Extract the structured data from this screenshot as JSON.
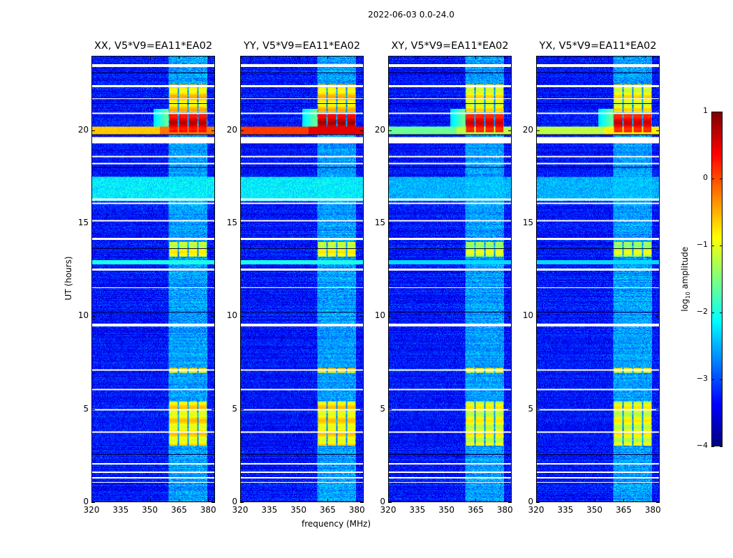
{
  "chart_data": {
    "type": "heatmap",
    "title": "2022-06-03 0.0-24.0",
    "xlabel": "frequency (MHz)",
    "ylabel": "UT (hours)",
    "xlim": [
      320,
      383.5
    ],
    "ylim": [
      0,
      24
    ],
    "xticks": [
      320,
      335,
      350,
      365,
      380
    ],
    "yticks": [
      0,
      5,
      10,
      15,
      20
    ],
    "colorbar": {
      "label_main": "log",
      "label_sub": "10",
      "label_rest": " amplitude",
      "range": [
        -4,
        1
      ],
      "ticks": [
        -4,
        -3,
        -2,
        -1,
        0,
        1
      ],
      "tick_labels": [
        "−4",
        "−3",
        "−2",
        "−1",
        "0",
        "1"
      ],
      "colormap": "jet"
    },
    "background_log_amplitude": -3.3,
    "rfi_subbands_mhz": [
      [
        360.2,
        364.5
      ],
      [
        365.2,
        369.5
      ],
      [
        370.2,
        374.5
      ],
      [
        375.2,
        379.5
      ]
    ],
    "flagged_hours": [
      [
        23.45,
        23.6
      ],
      [
        22.35,
        22.45
      ],
      [
        21.7,
        21.75
      ],
      [
        20.9,
        20.95
      ],
      [
        19.3,
        19.65
      ],
      [
        18.55,
        18.65
      ],
      [
        18.2,
        18.25
      ],
      [
        16.25,
        16.35
      ],
      [
        16.05,
        16.12
      ],
      [
        15.1,
        15.2
      ],
      [
        14.1,
        14.2
      ],
      [
        12.45,
        12.55
      ],
      [
        11.5,
        11.55
      ],
      [
        9.45,
        9.6
      ],
      [
        7.05,
        7.12
      ],
      [
        6.0,
        6.07
      ],
      [
        4.9,
        4.97
      ],
      [
        3.7,
        3.77
      ],
      [
        2.0,
        2.07
      ],
      [
        1.55,
        1.62
      ],
      [
        1.25,
        1.3
      ],
      [
        1.0,
        1.05
      ]
    ],
    "dark_hours": [
      [
        23.1,
        23.15
      ],
      [
        21.45,
        21.5
      ],
      [
        19.75,
        19.8
      ],
      [
        18.0,
        18.05
      ],
      [
        13.6,
        13.65
      ],
      [
        10.2,
        10.25
      ],
      [
        2.5,
        2.55
      ]
    ],
    "panels": [
      {
        "title": "XX, V5*V9=EA11*EA02",
        "broadband_20h": -0.6,
        "rfi_blocks": [
          {
            "hours": [
              21.0,
              22.5
            ],
            "level": -0.7
          },
          {
            "hours": [
              19.9,
              20.95
            ],
            "level": 0.5
          },
          {
            "hours": [
              13.2,
              14.0
            ],
            "level": -1.0
          },
          {
            "hours": [
              6.95,
              7.2
            ],
            "level": -0.9
          },
          {
            "hours": [
              3.0,
              5.4
            ],
            "level": -0.8
          }
        ],
        "band_16h": -2.2
      },
      {
        "title": "YY, V5*V9=EA11*EA02",
        "broadband_20h": 0.1,
        "rfi_blocks": [
          {
            "hours": [
              21.0,
              22.5
            ],
            "level": -0.7
          },
          {
            "hours": [
              19.9,
              20.95
            ],
            "level": 0.6
          },
          {
            "hours": [
              13.2,
              14.0
            ],
            "level": -1.0
          },
          {
            "hours": [
              6.95,
              7.2
            ],
            "level": -0.8
          },
          {
            "hours": [
              3.0,
              5.4
            ],
            "level": -0.8
          }
        ],
        "band_16h": -2.2
      },
      {
        "title": "XY, V5*V9=EA11*EA02",
        "broadband_20h": -1.6,
        "rfi_blocks": [
          {
            "hours": [
              21.0,
              22.5
            ],
            "level": -0.9
          },
          {
            "hours": [
              19.9,
              20.95
            ],
            "level": 0.4
          },
          {
            "hours": [
              13.2,
              14.0
            ],
            "level": -1.2
          },
          {
            "hours": [
              6.95,
              7.2
            ],
            "level": -1.0
          },
          {
            "hours": [
              3.0,
              5.4
            ],
            "level": -1.0
          }
        ],
        "band_16h": -2.5
      },
      {
        "title": "YX, V5*V9=EA11*EA02",
        "broadband_20h": -1.2,
        "rfi_blocks": [
          {
            "hours": [
              21.0,
              22.5
            ],
            "level": -0.9
          },
          {
            "hours": [
              19.9,
              20.95
            ],
            "level": 0.4
          },
          {
            "hours": [
              13.2,
              14.0
            ],
            "level": -1.2
          },
          {
            "hours": [
              6.95,
              7.2
            ],
            "level": -1.0
          },
          {
            "hours": [
              3.0,
              5.4
            ],
            "level": -1.0
          }
        ],
        "band_16h": -2.5
      }
    ]
  }
}
